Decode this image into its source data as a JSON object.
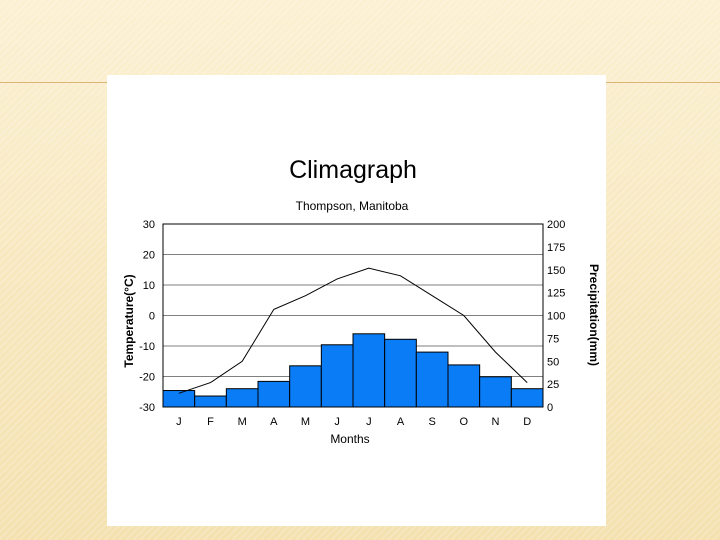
{
  "chart_data": {
    "type": "bar+line",
    "title": "Climagraph",
    "subtitle": "Thompson, Manitoba",
    "xlabel": "Months",
    "ylabel_left": "Temperature(°C)",
    "ylabel_right": "Precipitation(mm)",
    "categories": [
      "J",
      "F",
      "M",
      "A",
      "M",
      "J",
      "J",
      "A",
      "S",
      "O",
      "N",
      "D"
    ],
    "temperature": [
      -25.5,
      -22,
      -15,
      2,
      6.5,
      12,
      15.5,
      13,
      6.5,
      0,
      -12,
      -22
    ],
    "precipitation": [
      18,
      12,
      20,
      28,
      45,
      68,
      80,
      74,
      60,
      46,
      33,
      20
    ],
    "y_left": {
      "min": -30,
      "max": 30,
      "ticks": [
        "30",
        "20",
        "10",
        "0",
        "-10",
        "-20",
        "-30"
      ]
    },
    "y_right": {
      "min": 0,
      "max": 200,
      "ticks": [
        "200",
        "175",
        "150",
        "125",
        "100",
        "75",
        "50",
        "25",
        "0"
      ]
    },
    "grid": "horizontal",
    "bar_color": "#0a7cf5",
    "line_color": "#000000"
  }
}
